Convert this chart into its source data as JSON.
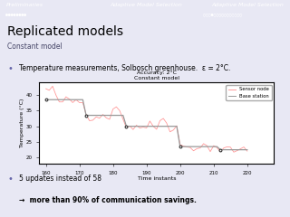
{
  "title_line1": "Accuracy: 2°C",
  "title_line2": "Constant model",
  "xlabel": "Time instants",
  "ylabel": "Temperature (°C)",
  "xlim": [
    158,
    228
  ],
  "ylim": [
    18,
    44
  ],
  "yticks": [
    20,
    25,
    30,
    35,
    40
  ],
  "xticks": [
    160,
    170,
    180,
    190,
    200,
    210,
    220
  ],
  "slide_title": "Replicated models",
  "slide_subtitle": "Constant model",
  "bullet1": "Temperature measurements, Solbosch greenhouse.  ε = 2°C.",
  "bullet2": "5 updates instead of 58",
  "bullet3": "→  more than 90% of communication savings.",
  "header_left": "Preliminaries",
  "header_mid": "Adaptive Model Selection",
  "header_right": "Adaptive Model Selection",
  "bg_color": "#e8e8f4",
  "plot_bg": "#ffffff",
  "header_bg": "#1a1a2e",
  "title_bg": "#c8c8e8",
  "sensor_color": "#ff9999",
  "base_color": "#999999",
  "update_marker_color": "#333333",
  "update_x": [
    160,
    172,
    184,
    200,
    212
  ],
  "update_temps": [
    38.5,
    33.5,
    30.0,
    23.5,
    22.5
  ],
  "legend_sensor": "Sensor node",
  "legend_base": "Base station",
  "dots_left": "●●●●●●●●",
  "dots_right_filled": "○○○●○○○○○○○○○○○"
}
